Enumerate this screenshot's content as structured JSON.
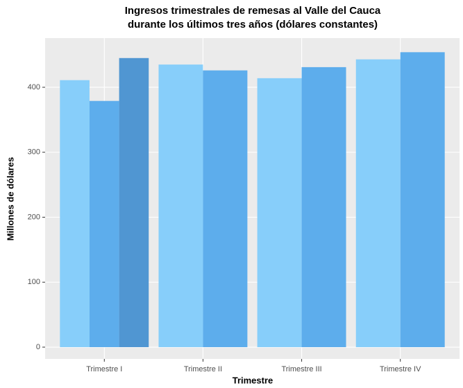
{
  "chart_data": {
    "type": "bar",
    "title": [
      "Ingresos trimestrales de remesas al Valle del Cauca",
      "durante los últimos tres años (dólares constantes)"
    ],
    "x_label": "Trimestre",
    "y_label": "Millones de dólares",
    "categories": [
      "Trimestre I",
      "Trimestre II",
      "Trimestre III",
      "Trimestre IV"
    ],
    "series": [
      {
        "color": "#87cefa",
        "values": [
          411,
          435,
          414,
          443
        ]
      },
      {
        "color": "#5dadec",
        "values": [
          379,
          426,
          431,
          454
        ]
      },
      {
        "color": "#5096d2",
        "values": [
          445,
          null,
          null,
          null
        ]
      }
    ],
    "ylim": [
      -18.1,
      475.7
    ],
    "yticks": [
      0,
      100,
      200,
      300,
      400
    ],
    "grid": true
  }
}
